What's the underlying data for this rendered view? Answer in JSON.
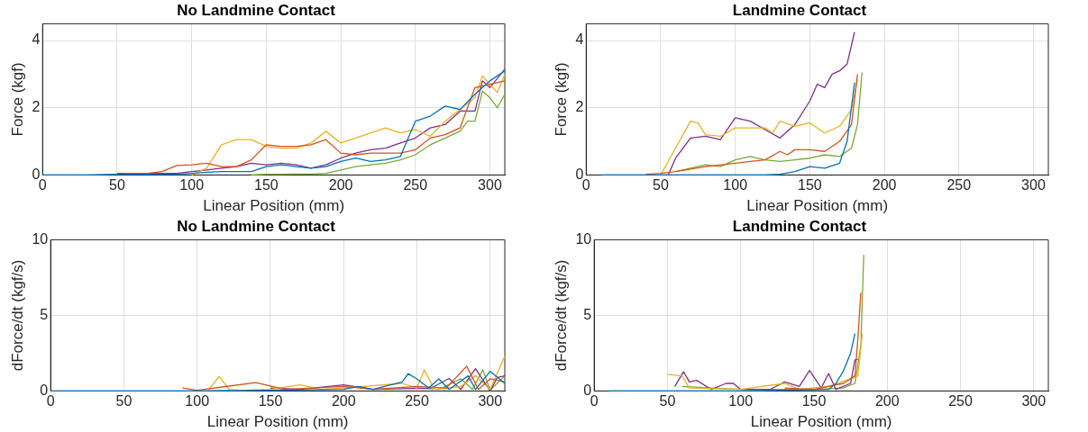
{
  "chart_data": [
    {
      "type": "line",
      "title": "No Landmine Contact",
      "xlabel": "Linear Position (mm)",
      "ylabel": "Force (kgf)",
      "xlim": [
        0,
        310
      ],
      "ylim": [
        0,
        4.5
      ],
      "xticks": [
        0,
        50,
        100,
        150,
        200,
        250,
        300
      ],
      "yticks": [
        0,
        2,
        4
      ],
      "grid": true,
      "marker": "none",
      "series": [
        {
          "color": "#0072bd",
          "x": [
            0,
            10,
            20,
            30,
            50,
            60,
            70,
            80,
            90,
            100,
            110,
            120,
            130,
            140,
            150,
            160,
            170,
            180,
            190,
            200,
            210,
            220,
            230,
            240,
            250,
            260,
            270,
            280,
            290,
            300,
            310
          ],
          "values": [
            0,
            0,
            0,
            0,
            0.02,
            0.02,
            0.02,
            0.02,
            0.03,
            0.05,
            0.08,
            0.1,
            0.1,
            0.1,
            0.25,
            0.3,
            0.25,
            0.2,
            0.25,
            0.4,
            0.5,
            0.4,
            0.45,
            0.55,
            1.6,
            1.75,
            2.05,
            1.95,
            2.4,
            2.8,
            3.1
          ]
        },
        {
          "color": "#d95319",
          "x": [
            50,
            60,
            70,
            80,
            90,
            100,
            110,
            120,
            130,
            140,
            150,
            160,
            170,
            180,
            190,
            200,
            210,
            220,
            230,
            240,
            250,
            260,
            270,
            280,
            290,
            300,
            310
          ],
          "values": [
            0.03,
            0.05,
            0.05,
            0.1,
            0.28,
            0.3,
            0.35,
            0.25,
            0.25,
            0.45,
            0.9,
            0.85,
            0.85,
            0.9,
            1.05,
            0.65,
            0.6,
            0.65,
            0.65,
            0.65,
            0.75,
            1.1,
            1.2,
            1.4,
            2.6,
            2.7,
            2.8
          ]
        },
        {
          "color": "#edb120",
          "x": [
            100,
            110,
            120,
            130,
            140,
            150,
            160,
            170,
            180,
            190,
            200,
            210,
            220,
            230,
            240,
            250,
            260,
            270,
            280,
            290,
            295,
            300,
            305,
            310
          ],
          "values": [
            0,
            0.2,
            0.9,
            1.05,
            1.05,
            0.85,
            0.8,
            0.8,
            0.95,
            1.3,
            0.95,
            1.1,
            1.25,
            1.4,
            1.25,
            1.35,
            1.15,
            1.6,
            1.95,
            2.3,
            2.95,
            2.7,
            2.45,
            3.0
          ]
        },
        {
          "color": "#7e2f8e",
          "x": [
            50,
            60,
            70,
            80,
            90,
            100,
            110,
            120,
            130,
            140,
            150,
            160,
            170,
            180,
            190,
            200,
            210,
            220,
            230,
            240,
            250,
            260,
            270,
            280,
            290,
            295,
            300,
            310
          ],
          "values": [
            0.05,
            0.05,
            0.05,
            0.05,
            0.05,
            0.1,
            0.15,
            0.2,
            0.25,
            0.35,
            0.3,
            0.35,
            0.3,
            0.2,
            0.3,
            0.5,
            0.65,
            0.75,
            0.8,
            0.95,
            1.1,
            1.4,
            1.5,
            1.9,
            1.9,
            2.8,
            2.6,
            3.15
          ]
        },
        {
          "color": "#77ac30",
          "x": [
            140,
            150,
            160,
            170,
            180,
            190,
            200,
            210,
            220,
            230,
            240,
            250,
            260,
            270,
            280,
            285,
            290,
            295,
            300,
            305,
            310
          ],
          "values": [
            0,
            0.02,
            0.02,
            0.03,
            0.03,
            0.05,
            0.15,
            0.25,
            0.3,
            0.35,
            0.45,
            0.6,
            0.9,
            1.1,
            1.3,
            1.6,
            1.6,
            2.5,
            2.3,
            2.0,
            2.4
          ]
        }
      ]
    },
    {
      "type": "line",
      "title": "Landmine Contact",
      "xlabel": "Linear Position (mm)",
      "ylabel": "Force (kgf)",
      "xlim": [
        0,
        310
      ],
      "ylim": [
        0,
        4.5
      ],
      "xticks": [
        0,
        50,
        100,
        150,
        200,
        250,
        300
      ],
      "yticks": [
        0,
        2,
        4
      ],
      "grid": true,
      "marker": "none",
      "series": [
        {
          "color": "#0072bd",
          "x": [
            10,
            120,
            130,
            140,
            150,
            160,
            170,
            175,
            180
          ],
          "values": [
            0,
            0,
            0.02,
            0.1,
            0.25,
            0.2,
            0.35,
            1.0,
            2.75
          ]
        },
        {
          "color": "#d95319",
          "x": [
            40,
            50,
            60,
            80,
            100,
            110,
            120,
            130,
            135,
            140,
            150,
            160,
            170,
            178,
            182
          ],
          "values": [
            0.02,
            0.05,
            0.1,
            0.25,
            0.35,
            0.4,
            0.45,
            0.7,
            0.6,
            0.75,
            0.75,
            0.7,
            1.0,
            1.5,
            3.0
          ]
        },
        {
          "color": "#edb120",
          "x": [
            50,
            60,
            70,
            75,
            80,
            90,
            100,
            110,
            120,
            125,
            130,
            140,
            150,
            160,
            170,
            178,
            182
          ],
          "values": [
            0,
            0.8,
            1.6,
            1.55,
            1.2,
            1.15,
            1.4,
            1.4,
            1.4,
            1.25,
            1.6,
            1.45,
            1.55,
            1.25,
            1.45,
            1.95,
            2.85
          ]
        },
        {
          "color": "#7e2f8e",
          "x": [
            55,
            60,
            70,
            80,
            90,
            100,
            110,
            120,
            130,
            140,
            150,
            155,
            160,
            165,
            170,
            175,
            180
          ],
          "values": [
            0,
            0.5,
            1.1,
            1.15,
            1.05,
            1.7,
            1.6,
            1.35,
            1.1,
            1.5,
            2.2,
            2.7,
            2.6,
            3.0,
            3.1,
            3.3,
            4.25
          ]
        },
        {
          "color": "#77ac30",
          "x": [
            60,
            70,
            80,
            90,
            100,
            110,
            120,
            130,
            140,
            150,
            160,
            170,
            178,
            182,
            185
          ],
          "values": [
            0.1,
            0.2,
            0.3,
            0.25,
            0.45,
            0.55,
            0.45,
            0.4,
            0.45,
            0.5,
            0.6,
            0.55,
            0.8,
            1.5,
            3.05
          ]
        }
      ]
    },
    {
      "type": "line",
      "title": "No Landmine Contact",
      "xlabel": "Linear Position (mm)",
      "ylabel": "dForce/dt (kgf/s)",
      "xlim": [
        0,
        310
      ],
      "ylim": [
        0,
        10
      ],
      "xticks": [
        0,
        50,
        100,
        150,
        200,
        250,
        300
      ],
      "yticks": [
        0,
        5,
        10
      ],
      "grid": true,
      "marker": "none",
      "series": [
        {
          "color": "#0072bd",
          "x": [
            0,
            100,
            200,
            210,
            220,
            240,
            244,
            250,
            258,
            265,
            272,
            285,
            290,
            300,
            310
          ],
          "values": [
            0,
            0,
            0.1,
            0.3,
            0.1,
            0.6,
            1.15,
            0.8,
            0.2,
            0.8,
            0.1,
            1.0,
            0.1,
            1.3,
            0.5
          ]
        },
        {
          "color": "#d95319",
          "x": [
            90,
            100,
            140,
            160,
            200,
            220,
            250,
            270,
            284,
            292,
            300,
            310
          ],
          "values": [
            0.2,
            0.05,
            0.55,
            0.1,
            0.3,
            0.1,
            0.3,
            0.2,
            1.64,
            0.1,
            0.8,
            0.6
          ]
        },
        {
          "color": "#edb120",
          "x": [
            108,
            115,
            122,
            130,
            150,
            170,
            185,
            200,
            240,
            250,
            255,
            262,
            280,
            290,
            300,
            310
          ],
          "values": [
            0.1,
            0.95,
            0.1,
            0.05,
            0.1,
            0.4,
            0.1,
            0.2,
            0.5,
            0.2,
            1.4,
            0.1,
            0.3,
            1.0,
            0.1,
            2.3
          ]
        },
        {
          "color": "#7e2f8e",
          "x": [
            150,
            170,
            200,
            220,
            260,
            272,
            280,
            290,
            300,
            305,
            310
          ],
          "values": [
            0.2,
            0.1,
            0.4,
            0.1,
            0.2,
            0.83,
            0.1,
            1.47,
            0,
            0.9,
            1.0
          ]
        },
        {
          "color": "#77ac30",
          "x": [
            250,
            265,
            280,
            288,
            295,
            300,
            310
          ],
          "values": [
            0.2,
            0.1,
            0.8,
            0.1,
            1.4,
            0.05,
            1.0
          ]
        }
      ]
    },
    {
      "type": "line",
      "title": "Landmine Contact",
      "xlabel": "Linear Position (mm)",
      "ylabel": "dForce/dt (kgf/s)",
      "xlim": [
        0,
        310
      ],
      "ylim": [
        0,
        10
      ],
      "xticks": [
        0,
        50,
        100,
        150,
        200,
        250,
        300
      ],
      "yticks": [
        0,
        5,
        10
      ],
      "grid": true,
      "marker": "none",
      "series": [
        {
          "color": "#0072bd",
          "x": [
            10,
            100,
            160,
            165,
            170,
            175,
            178
          ],
          "values": [
            0,
            0,
            0.1,
            0.5,
            1.3,
            2.5,
            3.8
          ]
        },
        {
          "color": "#d95319",
          "x": [
            130,
            150,
            170,
            178,
            180,
            182
          ],
          "values": [
            0.2,
            0.1,
            0.5,
            1.0,
            3.5,
            6.5
          ]
        },
        {
          "color": "#edb120",
          "x": [
            50,
            60,
            65,
            100,
            130,
            140,
            160,
            175,
            180,
            183
          ],
          "values": [
            1.1,
            1.0,
            0.2,
            0.1,
            0.5,
            0.1,
            0.3,
            0.8,
            1.0,
            3.8
          ]
        },
        {
          "color": "#7e2f8e",
          "x": [
            55,
            61,
            65,
            70,
            80,
            90,
            95,
            100,
            120,
            130,
            140,
            147,
            155,
            160,
            165,
            175,
            178,
            180
          ],
          "values": [
            0.3,
            1.27,
            0.6,
            0.7,
            0.1,
            0.5,
            0.5,
            0.1,
            0.1,
            0.6,
            0.3,
            1.35,
            0.2,
            1.15,
            0.1,
            0.5,
            2.06,
            2.1
          ]
        },
        {
          "color": "#77ac30",
          "x": [
            60,
            80,
            100,
            150,
            170,
            178,
            182,
            184
          ],
          "values": [
            0.3,
            0.2,
            0.1,
            0.1,
            0.2,
            0.5,
            3.0,
            9.0
          ]
        }
      ]
    }
  ]
}
